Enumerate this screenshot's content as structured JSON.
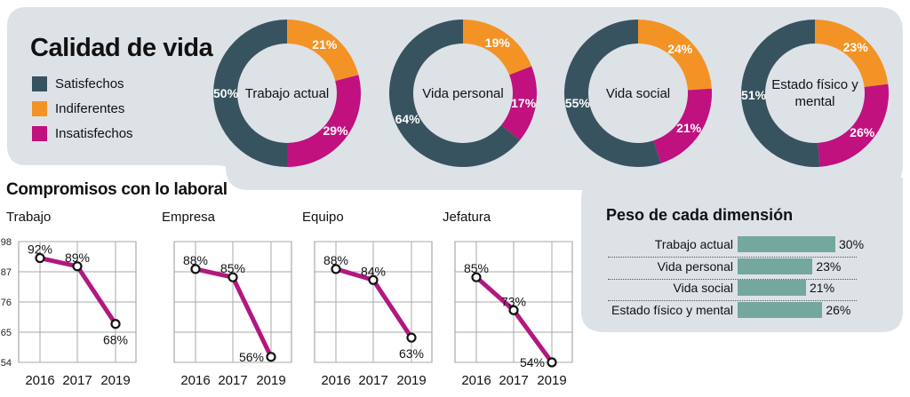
{
  "colors": {
    "satisfechos": "#37535f",
    "indiferentes": "#f39325",
    "insatisfechos": "#c0117e",
    "panel": "#dde2e7",
    "line": "#b1187f",
    "bar": "#74a89e"
  },
  "header": {
    "title": "Calidad de vida"
  },
  "legend": [
    {
      "label": "Satisfechos",
      "color": "#37535f"
    },
    {
      "label": "Indiferentes",
      "color": "#f39325"
    },
    {
      "label": "Insatisfechos",
      "color": "#c0117e"
    }
  ],
  "compromisos_title": "Compromisos con lo laboral",
  "peso_title": "Peso de cada dimensión",
  "chart_data": [
    {
      "type": "pie",
      "title": "Calidad de vida",
      "legend_placement": "left",
      "charts": [
        {
          "label": "Trabajo actual",
          "slices": [
            {
              "name": "Satisfechos",
              "value": 50,
              "label": "50%"
            },
            {
              "name": "Indiferentes",
              "value": 21,
              "label": "21%"
            },
            {
              "name": "Insatisfechos",
              "value": 29,
              "label": "29%"
            }
          ]
        },
        {
          "label": "Vida personal",
          "slices": [
            {
              "name": "Satisfechos",
              "value": 64,
              "label": "64%"
            },
            {
              "name": "Indiferentes",
              "value": 19,
              "label": "19%"
            },
            {
              "name": "Insatisfechos",
              "value": 17,
              "label": "17%"
            }
          ]
        },
        {
          "label": "Vida social",
          "slices": [
            {
              "name": "Satisfechos",
              "value": 55,
              "label": "55%"
            },
            {
              "name": "Indiferentes",
              "value": 24,
              "label": "24%"
            },
            {
              "name": "Insatisfechos",
              "value": 21,
              "label": "21%"
            }
          ]
        },
        {
          "label": "Estado físico y mental",
          "slices": [
            {
              "name": "Satisfechos",
              "value": 51,
              "label": "51%"
            },
            {
              "name": "Indiferentes",
              "value": 23,
              "label": "23%"
            },
            {
              "name": "Insatisfechos",
              "value": 26,
              "label": "26%"
            }
          ]
        }
      ]
    },
    {
      "type": "line",
      "title": "Compromisos con lo laboral",
      "x": [
        "2016",
        "2017",
        "2019"
      ],
      "ylim": [
        54,
        98
      ],
      "yticks": [
        "98",
        "87",
        "76",
        "65",
        "54"
      ],
      "grid": true,
      "charts": [
        {
          "title": "Trabajo",
          "values": [
            92,
            89,
            68
          ],
          "labels": [
            "92%",
            "89%",
            "68%"
          ],
          "show_yticks": true
        },
        {
          "title": "Empresa",
          "values": [
            88,
            85,
            56
          ],
          "labels": [
            "88%",
            "85%",
            "56%"
          ]
        },
        {
          "title": "Equipo",
          "values": [
            88,
            84,
            63
          ],
          "labels": [
            "88%",
            "84%",
            "63%"
          ]
        },
        {
          "title": "Jefatura",
          "values": [
            85,
            73,
            54
          ],
          "labels": [
            "85%",
            "73%",
            "54%"
          ]
        }
      ]
    },
    {
      "type": "bar",
      "orientation": "horizontal",
      "title": "Peso de cada dimensión",
      "categories": [
        "Trabajo actual",
        "Vida personal",
        "Vida social",
        "Estado físico y mental"
      ],
      "values": [
        30,
        23,
        21,
        26
      ],
      "labels": [
        "30%",
        "23%",
        "21%",
        "26%"
      ]
    }
  ]
}
